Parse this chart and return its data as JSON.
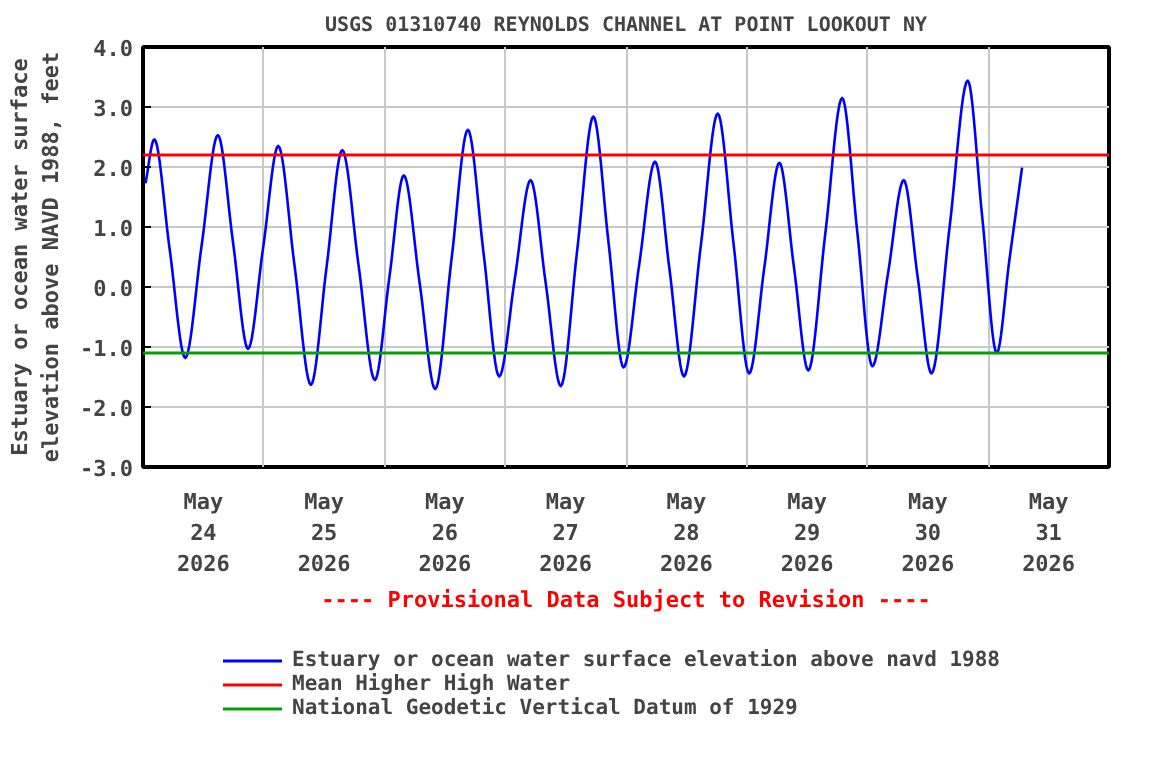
{
  "chart_data": {
    "type": "line",
    "title": "USGS 01310740 REYNOLDS CHANNEL AT POINT LOOKOUT NY",
    "ylabel": "Estuary or ocean water surface\nelevation above NAVD 1988, feet",
    "x": [
      "2026-05-24T00:30",
      "2026-05-24T02:15",
      "2026-05-24T05:17",
      "2026-05-24T08:24",
      "2026-05-24T11:38",
      "2026-05-24T14:53",
      "2026-05-24T17:53",
      "2026-05-24T20:53",
      "2026-05-24T23:53",
      "2026-05-25T02:53",
      "2026-05-25T06:07",
      "2026-05-25T09:22",
      "2026-05-25T12:29",
      "2026-05-25T15:36",
      "2026-05-25T18:50",
      "2026-05-25T22:05",
      "2026-05-26T00:58",
      "2026-05-26T03:50",
      "2026-05-26T06:58",
      "2026-05-26T10:05",
      "2026-05-26T13:19",
      "2026-05-26T16:34",
      "2026-05-26T19:41",
      "2026-05-26T22:48",
      "2026-05-27T01:55",
      "2026-05-27T05:02",
      "2026-05-27T08:02",
      "2026-05-27T11:02",
      "2026-05-27T14:17",
      "2026-05-27T17:31",
      "2026-05-27T20:31",
      "2026-05-27T23:31",
      "2026-05-28T02:38",
      "2026-05-28T05:46",
      "2026-05-28T08:38",
      "2026-05-28T11:31",
      "2026-05-28T14:53",
      "2026-05-28T18:14",
      "2026-05-28T21:22",
      "2026-05-29T00:29",
      "2026-05-29T03:29",
      "2026-05-29T06:29",
      "2026-05-29T09:22",
      "2026-05-29T12:14",
      "2026-05-29T15:36",
      "2026-05-29T18:58",
      "2026-05-29T21:58",
      "2026-05-30T00:58",
      "2026-05-30T04:05",
      "2026-05-30T07:12",
      "2026-05-30T09:58",
      "2026-05-30T12:43",
      "2026-05-30T16:19",
      "2026-05-30T19:55",
      "2026-05-30T22:48",
      "2026-05-31T01:41",
      "2026-05-31T04:12",
      "2026-05-31T06:43"
    ],
    "series": [
      {
        "name": "Estuary or ocean water surface elevation above navd 1988",
        "color": "#0000ff",
        "values": [
          1.73,
          2.46,
          0.64,
          -1.18,
          0.68,
          2.53,
          0.75,
          -1.03,
          0.66,
          2.35,
          0.36,
          -1.63,
          0.33,
          2.28,
          0.37,
          -1.55,
          0.16,
          1.86,
          0.08,
          -1.7,
          0.46,
          2.62,
          0.57,
          -1.49,
          0.15,
          1.78,
          0.07,
          -1.65,
          0.6,
          2.84,
          0.75,
          -1.34,
          0.38,
          2.09,
          0.3,
          -1.49,
          0.7,
          2.89,
          0.73,
          -1.44,
          0.32,
          2.07,
          0.34,
          -1.39,
          0.88,
          3.15,
          0.92,
          -1.32,
          0.23,
          1.78,
          0.17,
          -1.44,
          1.0,
          3.44,
          1.17,
          -1.1,
          0.45,
          1.99
        ]
      }
    ],
    "ref_lines": [
      {
        "axis": "y",
        "value": 2.2,
        "label": "Mean Higher High Water",
        "color": "#ff0000"
      },
      {
        "axis": "y",
        "value": -1.1,
        "label": "National Geodetic Vertical Datum of 1929",
        "color": "#00a000"
      }
    ],
    "annotations": [
      "---- Provisional Data Subject to Revision ----"
    ],
    "xlim": [
      "2026-05-24T00:00",
      "2026-06-01T00:00"
    ],
    "xticks": [
      {
        "value": "2026-05-24T12:00",
        "label": "May\n24\n2026"
      },
      {
        "value": "2026-05-25T00:00",
        "label": null
      },
      {
        "value": "2026-05-25T12:00",
        "label": "May\n25\n2026"
      },
      {
        "value": "2026-05-26T00:00",
        "label": null
      },
      {
        "value": "2026-05-26T12:00",
        "label": "May\n26\n2026"
      },
      {
        "value": "2026-05-27T00:00",
        "label": null
      },
      {
        "value": "2026-05-27T12:00",
        "label": "May\n27\n2026"
      },
      {
        "value": "2026-05-28T00:00",
        "label": null
      },
      {
        "value": "2026-05-28T12:00",
        "label": "May\n28\n2026"
      },
      {
        "value": "2026-05-29T00:00",
        "label": null
      },
      {
        "value": "2026-05-29T12:00",
        "label": "May\n29\n2026"
      },
      {
        "value": "2026-05-30T00:00",
        "label": null
      },
      {
        "value": "2026-05-30T12:00",
        "label": "May\n30\n2026"
      },
      {
        "value": "2026-05-31T00:00",
        "label": null
      },
      {
        "value": "2026-05-31T12:00",
        "label": "May\n31\n2026"
      }
    ],
    "ylim": [
      -3.0,
      4.0
    ],
    "yticks": [
      {
        "value": -3,
        "label": "-3.0"
      },
      {
        "value": -2,
        "label": "-2.0"
      },
      {
        "value": -1,
        "label": "-1.0"
      },
      {
        "value": 0,
        "label": "0.0"
      },
      {
        "value": 1,
        "label": "1.0"
      },
      {
        "value": 2,
        "label": "2.0"
      },
      {
        "value": 3,
        "label": "3.0"
      },
      {
        "value": 4,
        "label": "4.0"
      }
    ],
    "grid": true,
    "legend": "bottom"
  }
}
